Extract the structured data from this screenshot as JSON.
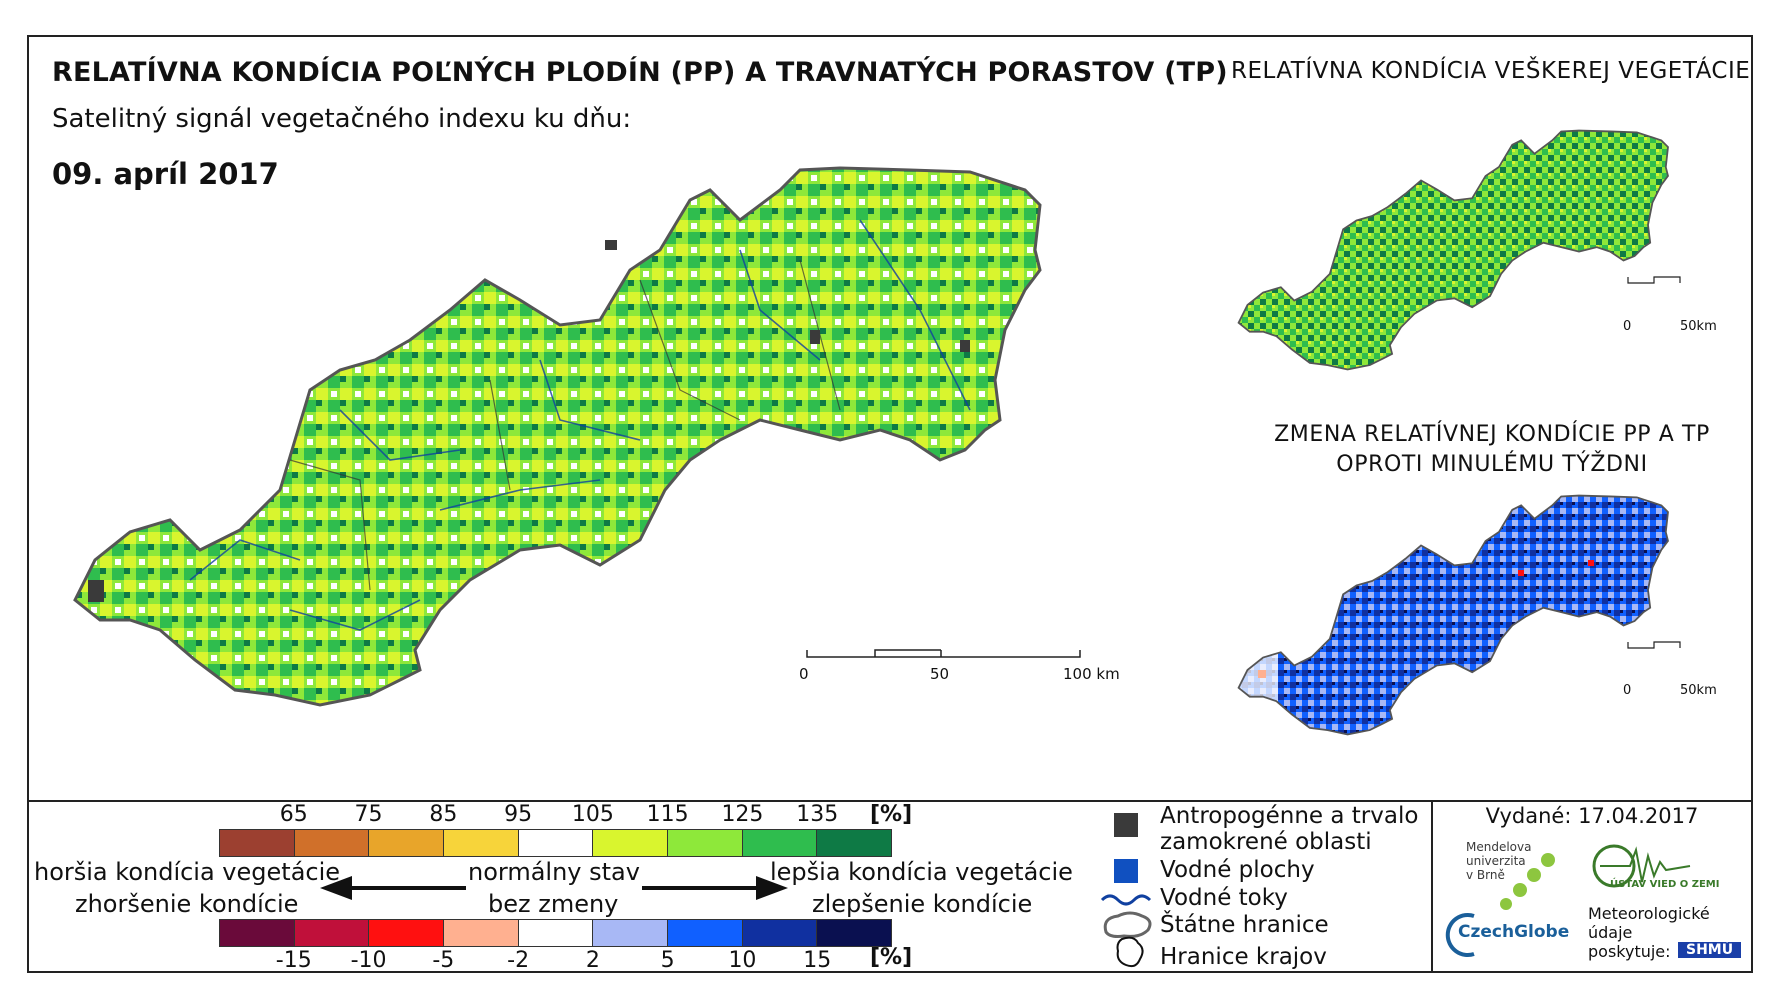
{
  "header": {
    "title": "RELATÍVNA KONDÍCIA POĽNÝCH PLODÍN (PP) A TRAVNATÝCH PORASTOV (TP)",
    "title_right": "RELATÍVNA KONDÍCIA VEŠKEREJ VEGETÁCIE",
    "subtitle": "Satelitný signál vegetačného indexu ku dňu:",
    "date": "09. apríl 2017"
  },
  "change_panel": {
    "title_line1": "ZMENA RELATÍVNEJ KONDÍCIE PP A TP",
    "title_line2": "OPROTI MINULÉMU TÝŽDNI"
  },
  "scalebars": {
    "main": {
      "labels": [
        "0",
        "50",
        "100 km"
      ]
    },
    "top_right": {
      "labels": [
        "0",
        "50km"
      ]
    },
    "bottom_right": {
      "labels": [
        "0",
        "50km"
      ]
    }
  },
  "legend": {
    "condition_ticks": [
      "65",
      "75",
      "85",
      "95",
      "105",
      "115",
      "125",
      "135"
    ],
    "condition_unit": "[%]",
    "condition_colors": [
      "#9c4030",
      "#d0702a",
      "#e8a52a",
      "#f7d43a",
      "#ffffff",
      "#d9f52e",
      "#8ee83a",
      "#2fbd4e",
      "#0e7a45"
    ],
    "change_ticks": [
      "-15",
      "-10",
      "-5",
      "-2",
      "2",
      "5",
      "10",
      "15"
    ],
    "change_unit": "[%]",
    "change_colors": [
      "#6a0a3a",
      "#c0103a",
      "#ff1010",
      "#ffb090",
      "#ffffff",
      "#a8b8f5",
      "#1060ff",
      "#1030a0",
      "#0a1050"
    ],
    "worse_condition": "horšia kondícia vegetácie",
    "worse_change": "zhoršenie kondície",
    "normal": "normálny stav",
    "no_change": "bez zmeny",
    "better_condition": "lepšia kondícia vegetácie",
    "better_change": "zlepšenie kondície"
  },
  "map_legend": {
    "anthro": "Antropogénne a trvalo zamokrené oblasti",
    "anthro_l1": "Antropogénne a trvalo",
    "anthro_l2": "zamokrené oblasti",
    "water_areas": "Vodné plochy",
    "water_streams": "Vodné toky",
    "state_borders": "Štátne hranice",
    "region_borders": "Hranice krajov",
    "colors": {
      "anthro": "#3a3a3a",
      "water": "#1050c0",
      "stream": "#1040a0"
    }
  },
  "issued": {
    "label": "Vydané:",
    "date": "17.04.2017"
  },
  "logos": {
    "mendel": [
      "Mendelova",
      "univerzita",
      "v Brně"
    ],
    "czechglobe": "CzechGlobe",
    "uvoz": "ÚSTAV VIED O ZEMI",
    "meteo": [
      "Meteorologické",
      "údaje",
      "poskytuje:"
    ],
    "shmu": "SHMÚ"
  }
}
